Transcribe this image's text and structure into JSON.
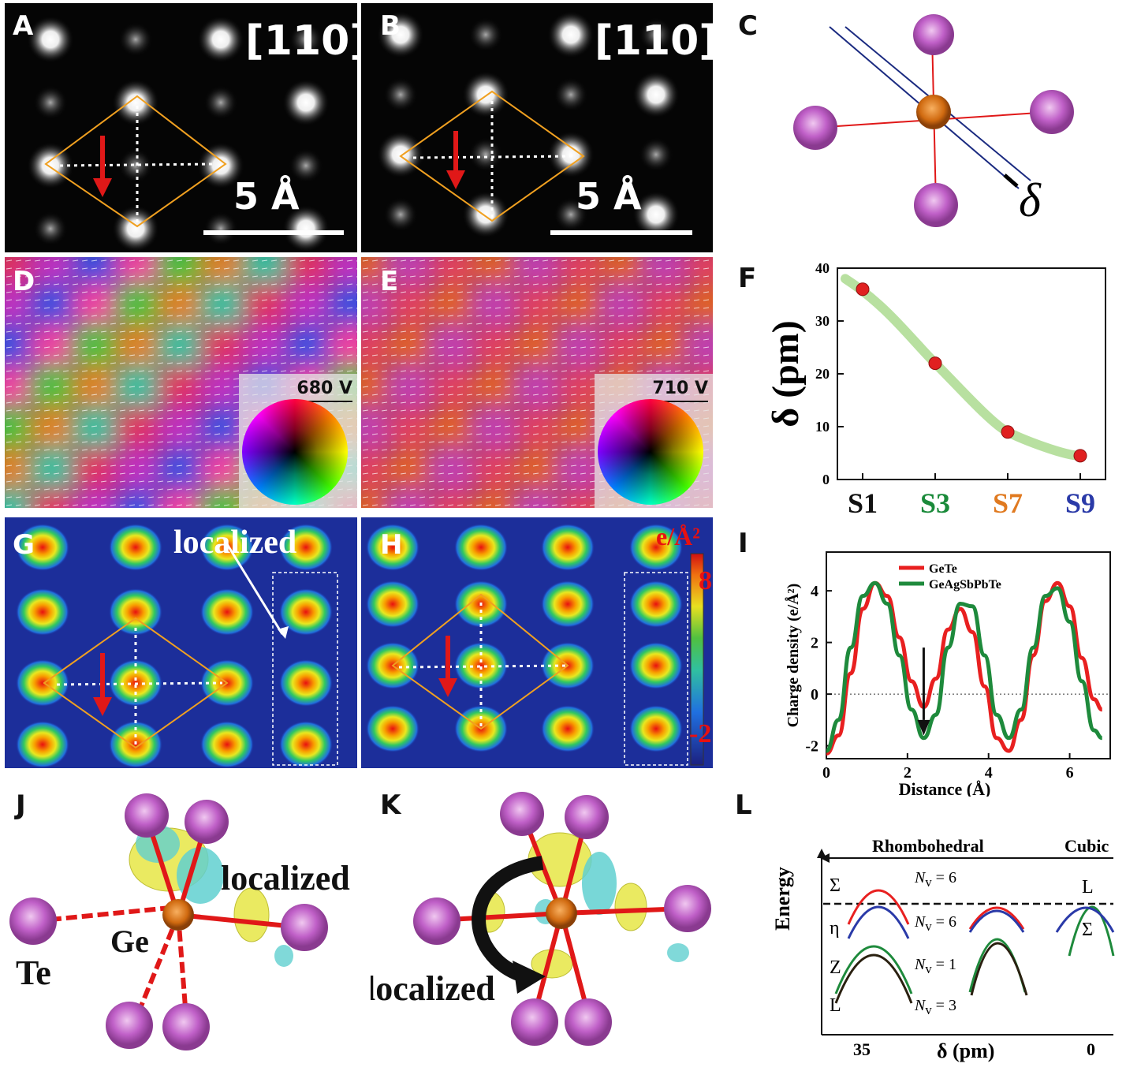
{
  "panels": {
    "A": {
      "label": "A",
      "zone": "[110]",
      "scale": "5 Å"
    },
    "B": {
      "label": "B",
      "zone": "[110]",
      "scale": "5 Å"
    },
    "C": {
      "label": "C",
      "delta": "δ"
    },
    "D": {
      "label": "D",
      "voltage": "680 V"
    },
    "E": {
      "label": "E",
      "voltage": "710 V"
    },
    "F": {
      "label": "F"
    },
    "G": {
      "label": "G",
      "annotation": "localized"
    },
    "H": {
      "label": "H",
      "unit": "e/Å²",
      "cbar_max": "8",
      "cbar_min": "-2"
    },
    "I": {
      "label": "I"
    },
    "J": {
      "label": "J",
      "annotation": "localized",
      "atom_ge": "Ge",
      "atom_te": "Te"
    },
    "K": {
      "label": "K",
      "annotation": "delocalized"
    },
    "L": {
      "label": "L",
      "rhombohedral": "Rhombohedral",
      "cubic": "Cubic",
      "ylabel": "Energy",
      "xlabel": "δ (pm)",
      "x_left": "35",
      "x_right": "0",
      "band_sigma": "Σ",
      "band_eta": "η",
      "band_z": "Z",
      "band_l": "L",
      "cubic_l": "L",
      "cubic_sigma": "Σ",
      "nv1": "N",
      "nv1_val": "= 6",
      "nv2_val": "= 6",
      "nv3_val": "= 1",
      "nv4_val": "= 3",
      "nv_sub": "v"
    }
  },
  "chart_data": [
    {
      "type": "scatter",
      "panel": "F",
      "categories": [
        "S1",
        "S3",
        "S7",
        "S9"
      ],
      "category_colors": [
        "#111111",
        "#1a8a3a",
        "#e07a20",
        "#2a3aa8"
      ],
      "values": [
        36,
        22,
        9,
        4.5
      ],
      "fit_color": "#b8e0a0",
      "point_color": "#e02020",
      "ylabel": "δ (pm)",
      "ylim": [
        0,
        40
      ],
      "yticks": [
        0,
        10,
        20,
        30,
        40
      ]
    },
    {
      "type": "line",
      "panel": "I",
      "xlabel": "Distance (Å)",
      "ylabel": "Charge density (e/Å²)",
      "xlim": [
        0,
        7
      ],
      "ylim": [
        -2.5,
        5.5
      ],
      "xticks": [
        0,
        2,
        4,
        6
      ],
      "yticks": [
        -2,
        0,
        2,
        4
      ],
      "legend_position": "top-left",
      "series": [
        {
          "name": "GeTe",
          "color": "#e82020",
          "x": [
            0,
            0.3,
            0.6,
            0.9,
            1.2,
            1.5,
            1.8,
            2.1,
            2.4,
            2.7,
            3.0,
            3.3,
            3.6,
            3.9,
            4.2,
            4.5,
            4.8,
            5.1,
            5.4,
            5.7,
            6.0,
            6.3,
            6.6,
            6.8
          ],
          "y": [
            -2.3,
            -1.6,
            0.8,
            3.3,
            4.3,
            3.8,
            2.2,
            0.5,
            -0.5,
            0.6,
            2.5,
            3.3,
            2.4,
            0.3,
            -1.7,
            -2.2,
            -1.0,
            1.5,
            3.6,
            4.3,
            3.4,
            1.4,
            -0.2,
            -0.6
          ]
        },
        {
          "name": "GeAgSbPbTe",
          "color": "#1e8a3c",
          "x": [
            0,
            0.3,
            0.6,
            0.9,
            1.2,
            1.5,
            1.8,
            2.1,
            2.4,
            2.7,
            3.0,
            3.3,
            3.6,
            3.9,
            4.2,
            4.5,
            4.8,
            5.1,
            5.4,
            5.7,
            6.0,
            6.3,
            6.6,
            6.8
          ],
          "y": [
            -2.2,
            -1.0,
            1.8,
            3.8,
            4.3,
            3.5,
            1.5,
            -0.6,
            -1.7,
            -0.8,
            1.8,
            3.5,
            3.4,
            1.5,
            -0.8,
            -1.7,
            -0.6,
            1.8,
            3.8,
            4.1,
            2.8,
            0.5,
            -1.4,
            -1.7
          ]
        }
      ]
    }
  ]
}
